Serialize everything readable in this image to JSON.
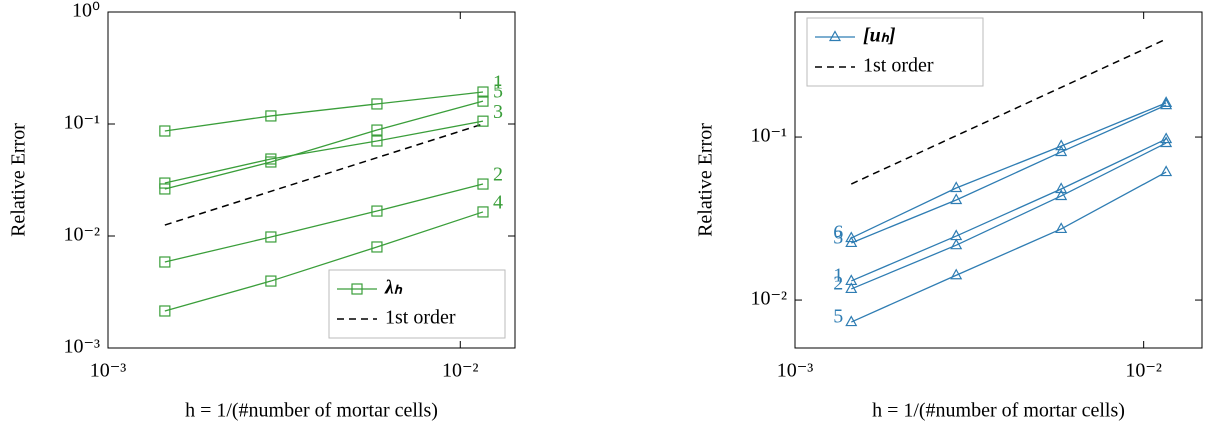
{
  "chart_data": [
    {
      "type": "line",
      "ylabel": "Relative Error",
      "xlabel": "h = 1/(#number of mortar cells)",
      "xlog": true,
      "ylog": true,
      "xlim": [
        0.001,
        0.0143
      ],
      "ylim": [
        0.001,
        1
      ],
      "xticks": [
        {
          "value": 0.001,
          "label": "10⁻³"
        },
        {
          "value": 0.01,
          "label": "10⁻²"
        }
      ],
      "yticks": [
        {
          "value": 0.001,
          "label": "10⁻³"
        },
        {
          "value": 0.01,
          "label": "10⁻²"
        },
        {
          "value": 0.1,
          "label": "10⁻¹"
        },
        {
          "value": 1,
          "label": "10⁰"
        }
      ],
      "x": [
        0.00145,
        0.0029,
        0.0058,
        0.0116
      ],
      "marker": "square",
      "label_side": "right",
      "color": "#3a9e3a",
      "series_label": "λₕ",
      "series": [
        {
          "name": "1",
          "values": [
            0.0866,
            0.118,
            0.151,
            0.193
          ]
        },
        {
          "name": "5",
          "values": [
            0.0263,
            0.0458,
            0.0883,
            0.16
          ]
        },
        {
          "name": "3",
          "values": [
            0.0297,
            0.0487,
            0.0705,
            0.106
          ]
        },
        {
          "name": "2",
          "values": [
            0.00586,
            0.0098,
            0.0167,
            0.0291
          ]
        },
        {
          "name": "4",
          "values": [
            0.00214,
            0.00396,
            0.00798,
            0.0164
          ]
        }
      ],
      "reference": {
        "name": "1st order",
        "color": "#000000",
        "x": [
          0.00145,
          0.0116
        ],
        "values": [
          0.01253,
          0.1
        ]
      },
      "legend": "lower right"
    },
    {
      "type": "line",
      "ylabel": "Relative Error",
      "xlabel": "h = 1/(#number of mortar cells)",
      "xlog": true,
      "ylog": true,
      "xlim": [
        0.001,
        0.0147
      ],
      "ylim": [
        0.00508,
        0.585
      ],
      "xticks": [
        {
          "value": 0.001,
          "label": "10⁻³"
        },
        {
          "value": 0.01,
          "label": "10⁻²"
        }
      ],
      "yticks": [
        {
          "value": 0.01,
          "label": "10⁻²"
        },
        {
          "value": 0.1,
          "label": "10⁻¹"
        }
      ],
      "x": [
        0.00145,
        0.0029,
        0.0058,
        0.0116
      ],
      "marker": "triangle",
      "label_side": "left",
      "color": "#2f7db3",
      "series_label": "[uₕ]",
      "series": [
        {
          "name": "6",
          "values": [
            0.024,
            0.0487,
            0.088,
            0.162
          ]
        },
        {
          "name": "3",
          "values": [
            0.0224,
            0.0411,
            0.081,
            0.157
          ]
        },
        {
          "name": "1",
          "values": [
            0.0131,
            0.0247,
            0.048,
            0.0972
          ]
        },
        {
          "name": "2",
          "values": [
            0.0117,
            0.0217,
            0.0435,
            0.0919
          ]
        },
        {
          "name": "5",
          "values": [
            0.00733,
            0.0142,
            0.0273,
            0.061
          ]
        }
      ],
      "reference": {
        "name": "1st order",
        "color": "#000000",
        "x": [
          0.00145,
          0.0116
        ],
        "values": [
          0.0515,
          0.399
        ]
      },
      "legend": "upper left"
    }
  ]
}
